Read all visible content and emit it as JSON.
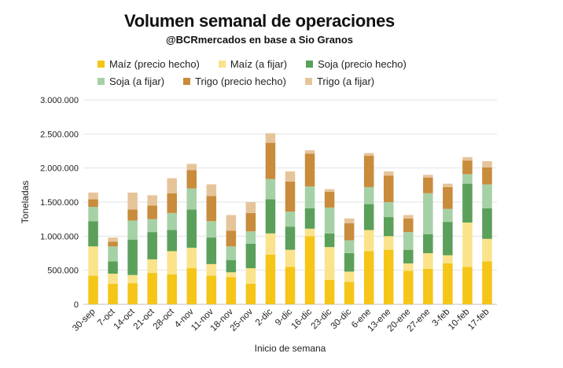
{
  "title": "Volumen semanal de operaciones",
  "subtitle": "@BCRmercados en base a Sio Granos",
  "chart_data": {
    "type": "bar",
    "stacked": true,
    "xlabel": "Inicio de semana",
    "ylabel": "Toneladas",
    "ylim": [
      0,
      3000000
    ],
    "yticks": [
      0,
      500000,
      1000000,
      1500000,
      2000000,
      2500000,
      3000000
    ],
    "ytick_labels": [
      "0",
      "500.000",
      "1.000.000",
      "1.500.000",
      "2.000.000",
      "2.500.000",
      "3.000.000"
    ],
    "grid": true,
    "legend_position": "top",
    "categories": [
      "30-sep",
      "7-oct",
      "14-oct",
      "21-oct",
      "28-oct",
      "4-nov",
      "11-nov",
      "18-nov",
      "25-nov",
      "2-dic",
      "9-dic",
      "16-dic",
      "23-dic",
      "30-dic",
      "6-ene",
      "13-ene",
      "20-ene",
      "27-ene",
      "3-feb",
      "10-feb",
      "17-feb"
    ],
    "series": [
      {
        "name": "Maíz (precio hecho)",
        "color": "#f5c518",
        "values": [
          420000,
          300000,
          310000,
          460000,
          440000,
          530000,
          420000,
          400000,
          300000,
          730000,
          550000,
          1000000,
          360000,
          330000,
          780000,
          800000,
          490000,
          520000,
          600000,
          550000,
          630000
        ]
      },
      {
        "name": "Maíz (a fijar)",
        "color": "#fae38a",
        "values": [
          430000,
          150000,
          120000,
          200000,
          340000,
          300000,
          170000,
          70000,
          230000,
          310000,
          250000,
          110000,
          480000,
          150000,
          310000,
          200000,
          110000,
          230000,
          120000,
          650000,
          330000
        ]
      },
      {
        "name": "Soja (precio hecho)",
        "color": "#5aa05a",
        "values": [
          370000,
          180000,
          520000,
          400000,
          310000,
          560000,
          390000,
          180000,
          360000,
          500000,
          340000,
          300000,
          200000,
          270000,
          380000,
          280000,
          200000,
          280000,
          490000,
          570000,
          450000
        ]
      },
      {
        "name": "Soja (a fijar)",
        "color": "#a6d1a6",
        "values": [
          210000,
          220000,
          280000,
          190000,
          250000,
          310000,
          240000,
          200000,
          180000,
          300000,
          220000,
          320000,
          380000,
          190000,
          250000,
          220000,
          260000,
          600000,
          190000,
          140000,
          350000
        ]
      },
      {
        "name": "Trigo (precio hecho)",
        "color": "#c98b3c",
        "values": [
          110000,
          70000,
          160000,
          200000,
          290000,
          270000,
          370000,
          230000,
          270000,
          530000,
          440000,
          480000,
          230000,
          250000,
          460000,
          390000,
          200000,
          230000,
          320000,
          200000,
          250000
        ]
      },
      {
        "name": "Trigo (a fijar)",
        "color": "#e6c49a",
        "values": [
          100000,
          60000,
          250000,
          150000,
          220000,
          90000,
          170000,
          230000,
          160000,
          140000,
          150000,
          50000,
          40000,
          70000,
          40000,
          60000,
          50000,
          40000,
          50000,
          50000,
          90000
        ]
      }
    ]
  }
}
